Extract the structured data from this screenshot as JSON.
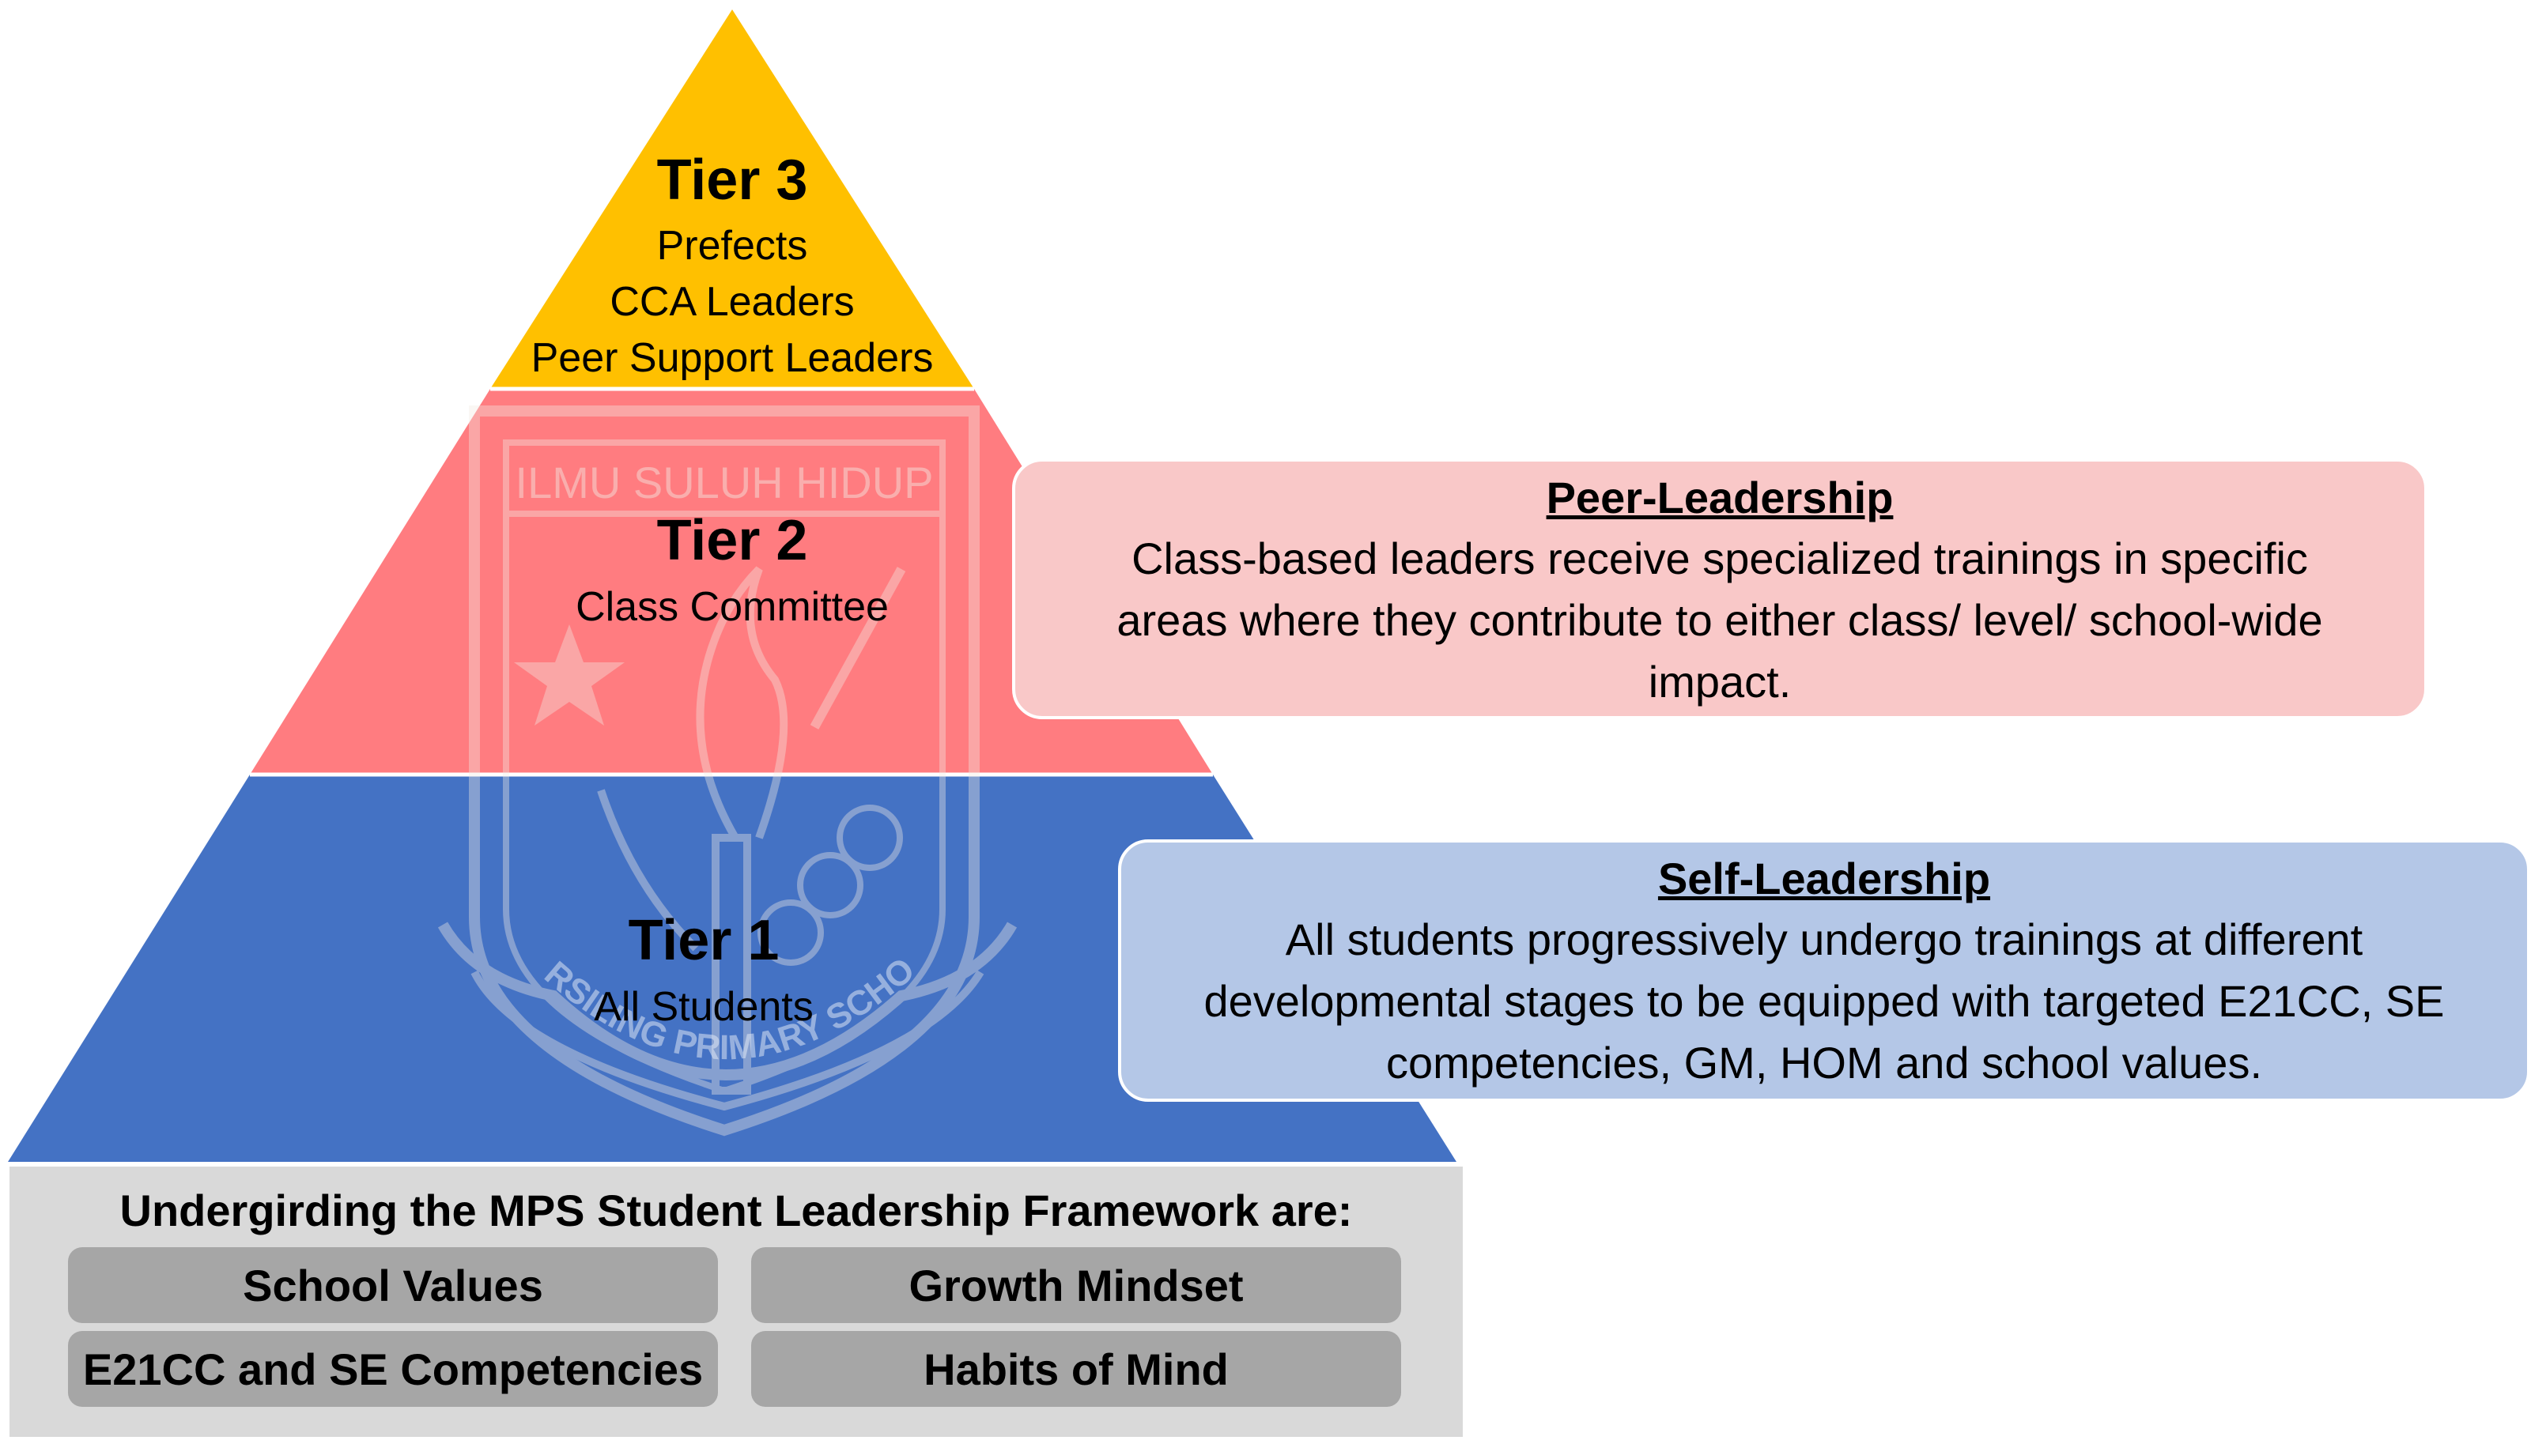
{
  "pyramid": {
    "tier3": {
      "title": "Tier 3",
      "lines": [
        "Prefects",
        "CCA Leaders",
        "Peer Support Leaders"
      ],
      "color": "#ffc000"
    },
    "tier2": {
      "title": "Tier 2",
      "lines": [
        "Class Committee"
      ],
      "color": "#ff7c80"
    },
    "tier1": {
      "title": "Tier 1",
      "lines": [
        "All Students"
      ],
      "color": "#4472c4"
    }
  },
  "crest": {
    "motto": "ILMU SULUH HIDUP",
    "school": "MARSILING PRIMARY SCHOOL"
  },
  "callouts": {
    "peer": {
      "title": "Peer-Leadership",
      "lines": [
        "Class-based leaders receive specialized trainings in specific",
        "areas where they contribute to either class/ level/ school-wide",
        "impact."
      ],
      "color": "#f9c8c8"
    },
    "self": {
      "title": "Self-Leadership",
      "lines": [
        "All students progressively undergo trainings at different",
        "developmental stages to be equipped with targeted E21CC, SE",
        "competencies, GM, HOM and school values."
      ],
      "color": "#b4c7e7"
    }
  },
  "foundation": {
    "title": "Undergirding the MPS Student Leadership Framework are:",
    "items": [
      "School Values",
      "Growth Mindset",
      "E21CC and SE Competencies",
      "Habits of Mind"
    ]
  }
}
